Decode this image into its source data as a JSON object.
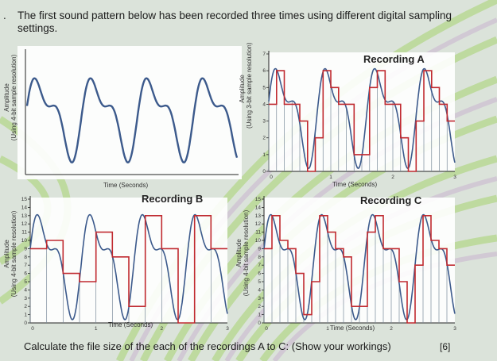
{
  "question": {
    "number": ".",
    "intro": "The first sound pattern below has been recorded three times using different digital sampling settings.",
    "prompt": "Calculate the file size of the each of the recordings A to C: (Show your workings)",
    "marks": "[6]"
  },
  "colors": {
    "wave": "#3c5a8c",
    "sampled": "#c02a30",
    "sample_lines": "#7a8a9a"
  },
  "original": {
    "ylabel_line1": "Amplitude",
    "ylabel_line2": "(Using 4-bit sample resolution)",
    "xlabel": "Time (Seconds)"
  },
  "recordings": [
    {
      "title": "Recording A",
      "ylabel_line1": "Amplitude",
      "ylabel_line2": "(Using 3-bit sample resolution)",
      "xlabel": "Time (Seconds)",
      "y_ticks": [
        "0",
        "1",
        "2",
        "3",
        "4",
        "5",
        "6",
        "7"
      ],
      "x_ticks": [
        "0",
        "1",
        "2",
        "3"
      ],
      "y_max": 7
    },
    {
      "title": "Recording B",
      "ylabel_line1": "Amplitude",
      "ylabel_line2": "(Using 4-bit sample resolution)",
      "xlabel": "Time (Seconds)",
      "y_ticks": [
        "0",
        "1",
        "2",
        "3",
        "4",
        "5",
        "6",
        "7",
        "8",
        "9",
        "10",
        "11",
        "12",
        "13",
        "14",
        "15"
      ],
      "x_ticks": [
        "0",
        "1",
        "2",
        "3"
      ],
      "y_max": 15
    },
    {
      "title": "Recording C",
      "ylabel_line1": "Amplitude",
      "ylabel_line2": "(Using 4-bit sample resolution)",
      "xlabel": "Time (Seconds)",
      "y_ticks": [
        "0",
        "1",
        "2",
        "3",
        "4",
        "5",
        "6",
        "7",
        "8",
        "9",
        "10",
        "11",
        "12",
        "13",
        "14",
        "15"
      ],
      "x_ticks": [
        "0",
        "1",
        "2",
        "3"
      ],
      "y_max": 15
    }
  ]
}
